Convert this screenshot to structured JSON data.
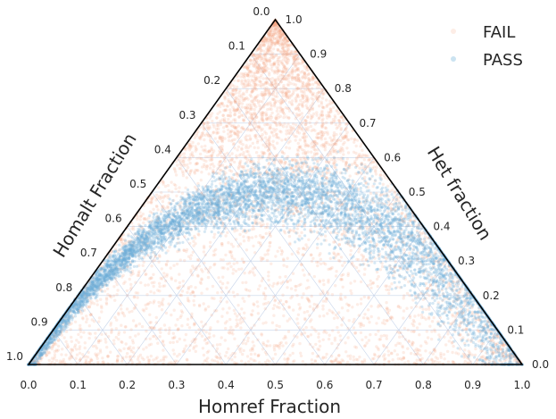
{
  "chart_data": {
    "type": "scatter",
    "subtype": "ternary",
    "axes": {
      "bottom": {
        "label": "Homref Fraction",
        "ticks": [
          "0.0",
          "0.1",
          "0.2",
          "0.3",
          "0.4",
          "0.5",
          "0.6",
          "0.7",
          "0.8",
          "0.9",
          "1.0"
        ]
      },
      "left": {
        "label": "Homalt Fraction",
        "ticks": [
          "0.0",
          "0.1",
          "0.2",
          "0.3",
          "0.4",
          "0.5",
          "0.6",
          "0.7",
          "0.8",
          "0.9",
          "1.0"
        ]
      },
      "right": {
        "label": "Het fraction",
        "ticks": [
          "0.0",
          "0.1",
          "0.2",
          "0.3",
          "0.4",
          "0.5",
          "0.6",
          "0.7",
          "0.8",
          "0.9",
          "1.0"
        ]
      }
    },
    "grid": true,
    "legend_position": "top-right",
    "series": [
      {
        "name": "FAIL",
        "color": "#f4a582",
        "distribution": "diffuse over whole simplex, densest at apex and bottom corners",
        "het_fraction_range": [
          0.0,
          1.0
        ]
      },
      {
        "name": "PASS",
        "color": "#6baed6",
        "distribution": "dense band following Hardy-Weinberg curve",
        "hwe_peak_het_fraction": 0.5,
        "het_band_halfwidth": 0.07
      }
    ]
  }
}
